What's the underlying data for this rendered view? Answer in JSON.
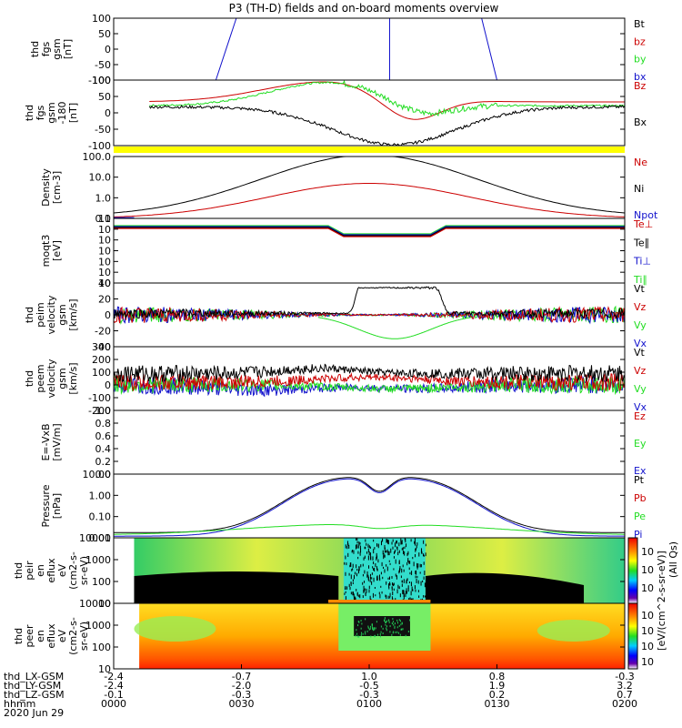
{
  "title": "P3 (TH-D) fields and on-board moments overview",
  "colors": {
    "black": "#000000",
    "red": "#cc0000",
    "green": "#22dd22",
    "blue": "#1111cc",
    "yellow": "#ffff00"
  },
  "chart_data": [
    {
      "type": "line",
      "id": "fgs",
      "ylabel_lines": [
        "thd",
        "fgs",
        "gsm",
        "[nT]"
      ],
      "ylim": [
        -100,
        100
      ],
      "yticks": [
        "100",
        "50",
        "0",
        "-50",
        "-100"
      ],
      "legend": [
        {
          "name": "Bt",
          "color": "black"
        },
        {
          "name": "bz",
          "color": "red"
        },
        {
          "name": "by",
          "color": "green"
        },
        {
          "name": "bx",
          "color": "blue"
        }
      ]
    },
    {
      "type": "line",
      "id": "fgs_rot",
      "ylabel_lines": [
        "thd",
        "fgs",
        "gsm",
        "-180",
        "[nT]"
      ],
      "ylim": [
        -125,
        100
      ],
      "yticks": [
        "100",
        "50",
        "0",
        "-50",
        "-100"
      ],
      "legend": [
        {
          "name": "Bz",
          "color": "red"
        },
        {
          "name": "Bx",
          "color": "black"
        }
      ]
    },
    {
      "type": "line",
      "id": "density",
      "ylabel_lines": [
        "Density",
        "[cm-3]"
      ],
      "scale": "log",
      "ylim": [
        0.1,
        100
      ],
      "yticks": [
        "100.0",
        "10.0",
        "1.0",
        "0.1"
      ],
      "legend": [
        {
          "name": "Ne",
          "color": "red"
        },
        {
          "name": "Ni",
          "color": "black"
        },
        {
          "name": "Npot",
          "color": "blue"
        }
      ]
    },
    {
      "type": "line",
      "id": "temp",
      "ylabel_lines": [
        "moqt3",
        "[eV]"
      ],
      "scale": "log",
      "yticks": [
        "10",
        "10",
        "10",
        "10",
        "10",
        "10",
        "10"
      ],
      "legend": [
        {
          "name": "Te⊥",
          "color": "red"
        },
        {
          "name": "Te∥",
          "color": "black"
        },
        {
          "name": "Ti⊥",
          "color": "blue"
        },
        {
          "name": "Ti∥",
          "color": "green"
        }
      ]
    },
    {
      "type": "line",
      "id": "peim",
      "ylabel_lines": [
        "thd",
        "peim",
        "velocity",
        "gsm",
        "[km/s]"
      ],
      "ylim": [
        -40,
        40
      ],
      "yticks": [
        "40",
        "20",
        "0",
        "-20",
        "-40"
      ],
      "legend": [
        {
          "name": "Vt",
          "color": "black"
        },
        {
          "name": "Vz",
          "color": "red"
        },
        {
          "name": "Vy",
          "color": "green"
        },
        {
          "name": "Vx",
          "color": "blue"
        }
      ]
    },
    {
      "type": "line",
      "id": "peem",
      "ylabel_lines": [
        "thd",
        "peem",
        "velocity",
        "gsm",
        "[km/s]"
      ],
      "ylim": [
        -200,
        300
      ],
      "yticks": [
        "300",
        "200",
        "100",
        "0",
        "-100",
        "-200"
      ],
      "legend": [
        {
          "name": "Vt",
          "color": "black"
        },
        {
          "name": "Vz",
          "color": "red"
        },
        {
          "name": "Vy",
          "color": "green"
        },
        {
          "name": "Vx",
          "color": "blue"
        }
      ]
    },
    {
      "type": "line",
      "id": "efield",
      "ylabel_lines": [
        "E=-VxB",
        "[mV/m]"
      ],
      "ylim": [
        0,
        1
      ],
      "yticks": [
        "1.0",
        "0.8",
        "0.6",
        "0.4",
        "0.2",
        "0.0"
      ],
      "legend": [
        {
          "name": "Ez",
          "color": "red"
        },
        {
          "name": "Ey",
          "color": "green"
        },
        {
          "name": "Ex",
          "color": "blue"
        }
      ]
    },
    {
      "type": "line",
      "id": "pressure",
      "ylabel_lines": [
        "Pressure",
        "[nPa]"
      ],
      "scale": "log",
      "yticks": [
        "10.00",
        "1.00",
        "0.10",
        "0.01"
      ],
      "legend": [
        {
          "name": "Pt",
          "color": "black"
        },
        {
          "name": "Pb",
          "color": "red"
        },
        {
          "name": "Pe",
          "color": "green"
        },
        {
          "name": "Pi",
          "color": "blue"
        }
      ]
    },
    {
      "type": "heatmap",
      "id": "peir",
      "ylabel_lines": [
        "thd",
        "peir",
        "en",
        "eflux",
        "eV",
        "(cm2-s-",
        "sr-eV)"
      ],
      "yticks": [
        "10000",
        "1000",
        "100",
        "10"
      ]
    },
    {
      "type": "heatmap",
      "id": "peer",
      "ylabel_lines": [
        "thd",
        "peer",
        "en",
        "eflux",
        "eV",
        "(cm2-s-",
        "sr-eV)"
      ],
      "yticks": [
        "10000",
        "1000",
        "100",
        "10"
      ]
    }
  ],
  "colorbar": {
    "label": "[eV/(cm^2-s-sr-eV)]",
    "side_label": "(All Qs)",
    "ticks_top": [
      "10",
      "10",
      "10"
    ],
    "ticks_bottom": [
      "10",
      "10",
      "10",
      "10"
    ]
  },
  "xaxis": {
    "row_labels": [
      "thd_LX-GSM",
      "thd_LY-GSM",
      "thd_LZ-GSM",
      "hhmm",
      "2020 Jun 29"
    ],
    "columns": [
      {
        "lx": "-2.4",
        "ly": "-2.4",
        "lz": "-0.1",
        "hhmm": "0000"
      },
      {
        "lx": "-0.7",
        "ly": "-2.0",
        "lz": "-0.3",
        "hhmm": "0030"
      },
      {
        "lx": "1.0",
        "ly": "-0.5",
        "lz": "-0.3",
        "hhmm": "0100"
      },
      {
        "lx": "0.8",
        "ly": "1.9",
        "lz": "0.2",
        "hhmm": "0130"
      },
      {
        "lx": "-0.3",
        "ly": "3.2",
        "lz": "0.7",
        "hhmm": "0200"
      }
    ]
  }
}
